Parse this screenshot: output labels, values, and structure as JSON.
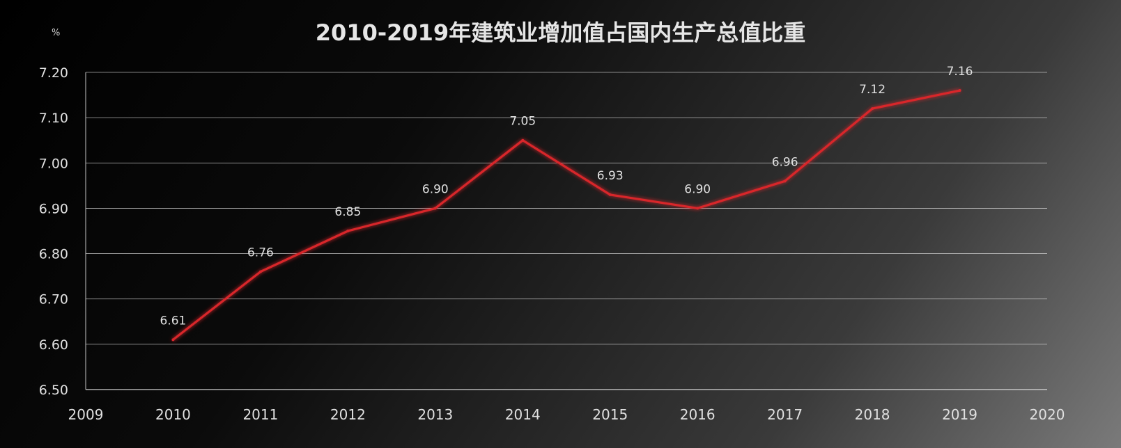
{
  "chart_data": {
    "type": "line",
    "title": "2010-2019年建筑业增加值占国内生产总值比重",
    "ylabel": "%",
    "xlabel": "",
    "x": [
      2010,
      2011,
      2012,
      2013,
      2014,
      2015,
      2016,
      2017,
      2018,
      2019
    ],
    "series": [
      {
        "values": [
          6.61,
          6.76,
          6.85,
          6.9,
          7.05,
          6.93,
          6.9,
          6.96,
          7.12,
          7.16
        ]
      }
    ],
    "data_labels": [
      "6.61",
      "6.76",
      "6.85",
      "6.90",
      "7.05",
      "6.93",
      "6.90",
      "6.96",
      "7.12",
      "7.16"
    ],
    "xlim": [
      2009,
      2020
    ],
    "ylim": [
      6.5,
      7.2
    ],
    "x_ticks": [
      "2009",
      "2010",
      "2011",
      "2012",
      "2013",
      "2014",
      "2015",
      "2016",
      "2017",
      "2018",
      "2019",
      "2020"
    ],
    "y_ticks": [
      "6.50",
      "6.60",
      "6.70",
      "6.80",
      "6.90",
      "7.00",
      "7.10",
      "7.20"
    ],
    "grid": true,
    "legend": "none",
    "colors": {
      "line": "#d9262c",
      "grid": "#e6e6e6",
      "text": "#e0e0e0"
    }
  }
}
